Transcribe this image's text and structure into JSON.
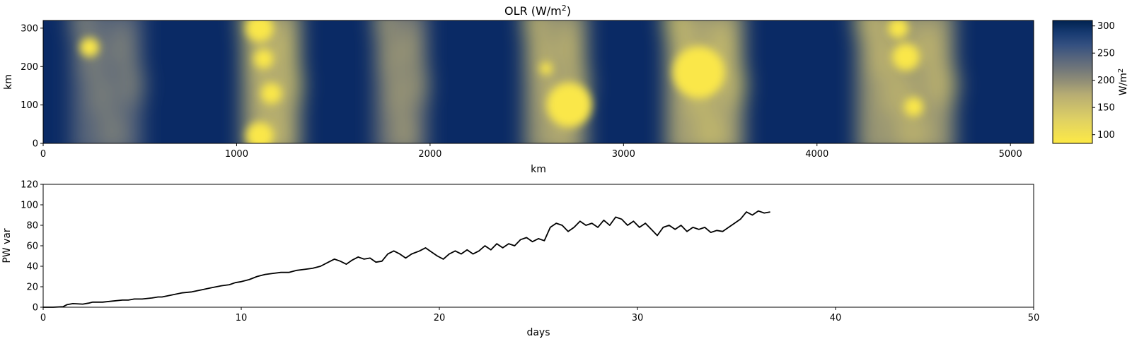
{
  "chart_data": [
    {
      "type": "heatmap",
      "title": "OLR (W/m",
      "title_sup": "2",
      "title_close": ")",
      "xlabel": "km",
      "ylabel": "km",
      "xlim": [
        0,
        5120
      ],
      "ylim": [
        0,
        320
      ],
      "xticks": [
        0,
        1000,
        2000,
        3000,
        4000,
        5000
      ],
      "yticks": [
        0,
        100,
        200,
        300
      ],
      "colormap": "cividis_r",
      "colorbar": {
        "label": "W/m",
        "label_sup": "2",
        "range": [
          84,
          310
        ],
        "ticks": [
          100,
          150,
          200,
          250,
          300
        ]
      },
      "convective_bands_km": [
        {
          "center": 330,
          "halfwidth": 180,
          "strength": 0.45
        },
        {
          "center": 1180,
          "halfwidth": 150,
          "strength": 0.8
        },
        {
          "center": 1850,
          "halfwidth": 130,
          "strength": 0.6
        },
        {
          "center": 2650,
          "halfwidth": 160,
          "strength": 0.75
        },
        {
          "center": 3420,
          "halfwidth": 200,
          "strength": 0.8
        },
        {
          "center": 4460,
          "halfwidth": 250,
          "strength": 0.75
        }
      ],
      "cloud_cores_km": [
        {
          "x": 240,
          "y": 250,
          "r": 28
        },
        {
          "x": 1120,
          "y": 300,
          "r": 40
        },
        {
          "x": 1140,
          "y": 220,
          "r": 28
        },
        {
          "x": 1180,
          "y": 130,
          "r": 30
        },
        {
          "x": 1120,
          "y": 20,
          "r": 40
        },
        {
          "x": 2600,
          "y": 195,
          "r": 18
        },
        {
          "x": 2720,
          "y": 100,
          "r": 65
        },
        {
          "x": 3390,
          "y": 185,
          "r": 75
        },
        {
          "x": 4460,
          "y": 225,
          "r": 40
        },
        {
          "x": 4500,
          "y": 95,
          "r": 28
        },
        {
          "x": 4420,
          "y": 300,
          "r": 30
        }
      ]
    },
    {
      "type": "line",
      "xlabel": "days",
      "ylabel": "PW var",
      "xlim": [
        0,
        50
      ],
      "ylim": [
        0,
        120
      ],
      "xticks": [
        0,
        10,
        20,
        30,
        40,
        50
      ],
      "yticks": [
        0,
        20,
        40,
        60,
        80,
        100,
        120
      ],
      "color": "#000000",
      "x": [
        0,
        0.5,
        1.0,
        1.2,
        1.5,
        2.0,
        2.3,
        2.5,
        3.0,
        3.5,
        4.0,
        4.3,
        4.6,
        5.0,
        5.5,
        5.8,
        6.0,
        6.5,
        7.0,
        7.5,
        8.0,
        8.5,
        9.0,
        9.4,
        9.7,
        10.0,
        10.4,
        10.8,
        11.2,
        11.6,
        12.0,
        12.4,
        12.8,
        13.2,
        13.6,
        14.0,
        14.4,
        14.7,
        15.0,
        15.3,
        15.6,
        15.9,
        16.2,
        16.5,
        16.8,
        17.1,
        17.4,
        17.7,
        18.0,
        18.3,
        18.6,
        19.0,
        19.3,
        19.6,
        19.9,
        20.2,
        20.5,
        20.8,
        21.1,
        21.4,
        21.7,
        22.0,
        22.3,
        22.6,
        22.9,
        23.2,
        23.5,
        23.8,
        24.1,
        24.4,
        24.7,
        25.0,
        25.3,
        25.6,
        25.9,
        26.2,
        26.5,
        26.8,
        27.1,
        27.4,
        27.7,
        28.0,
        28.3,
        28.6,
        28.9,
        29.2,
        29.5,
        29.8,
        30.1,
        30.4,
        30.7,
        31.0,
        31.3,
        31.6,
        31.9,
        32.2,
        32.5,
        32.8,
        33.1,
        33.4,
        33.7,
        34.0,
        34.3,
        34.6,
        34.9,
        35.2,
        35.5,
        35.8,
        36.1,
        36.4,
        36.7
      ],
      "y": [
        0,
        0,
        0.5,
        2.5,
        3.5,
        3,
        4,
        5,
        5,
        6,
        7,
        7,
        8,
        8,
        9,
        10,
        10,
        12,
        14,
        15,
        17,
        19,
        21,
        22,
        24,
        25,
        27,
        30,
        32,
        33,
        34,
        34,
        36,
        37,
        38,
        40,
        44,
        47,
        45,
        42,
        46,
        49,
        47,
        48,
        44,
        45,
        52,
        55,
        52,
        48,
        52,
        55,
        58,
        54,
        50,
        47,
        52,
        55,
        52,
        56,
        52,
        55,
        60,
        56,
        62,
        58,
        62,
        60,
        66,
        68,
        64,
        67,
        65,
        78,
        82,
        80,
        74,
        78,
        84,
        80,
        82,
        78,
        85,
        80,
        88,
        86,
        80,
        84,
        78,
        82,
        76,
        70,
        78,
        80,
        76,
        80,
        74,
        78,
        76,
        78,
        73,
        75,
        74,
        78,
        82,
        86,
        93,
        90,
        94,
        92,
        93
      ]
    }
  ]
}
